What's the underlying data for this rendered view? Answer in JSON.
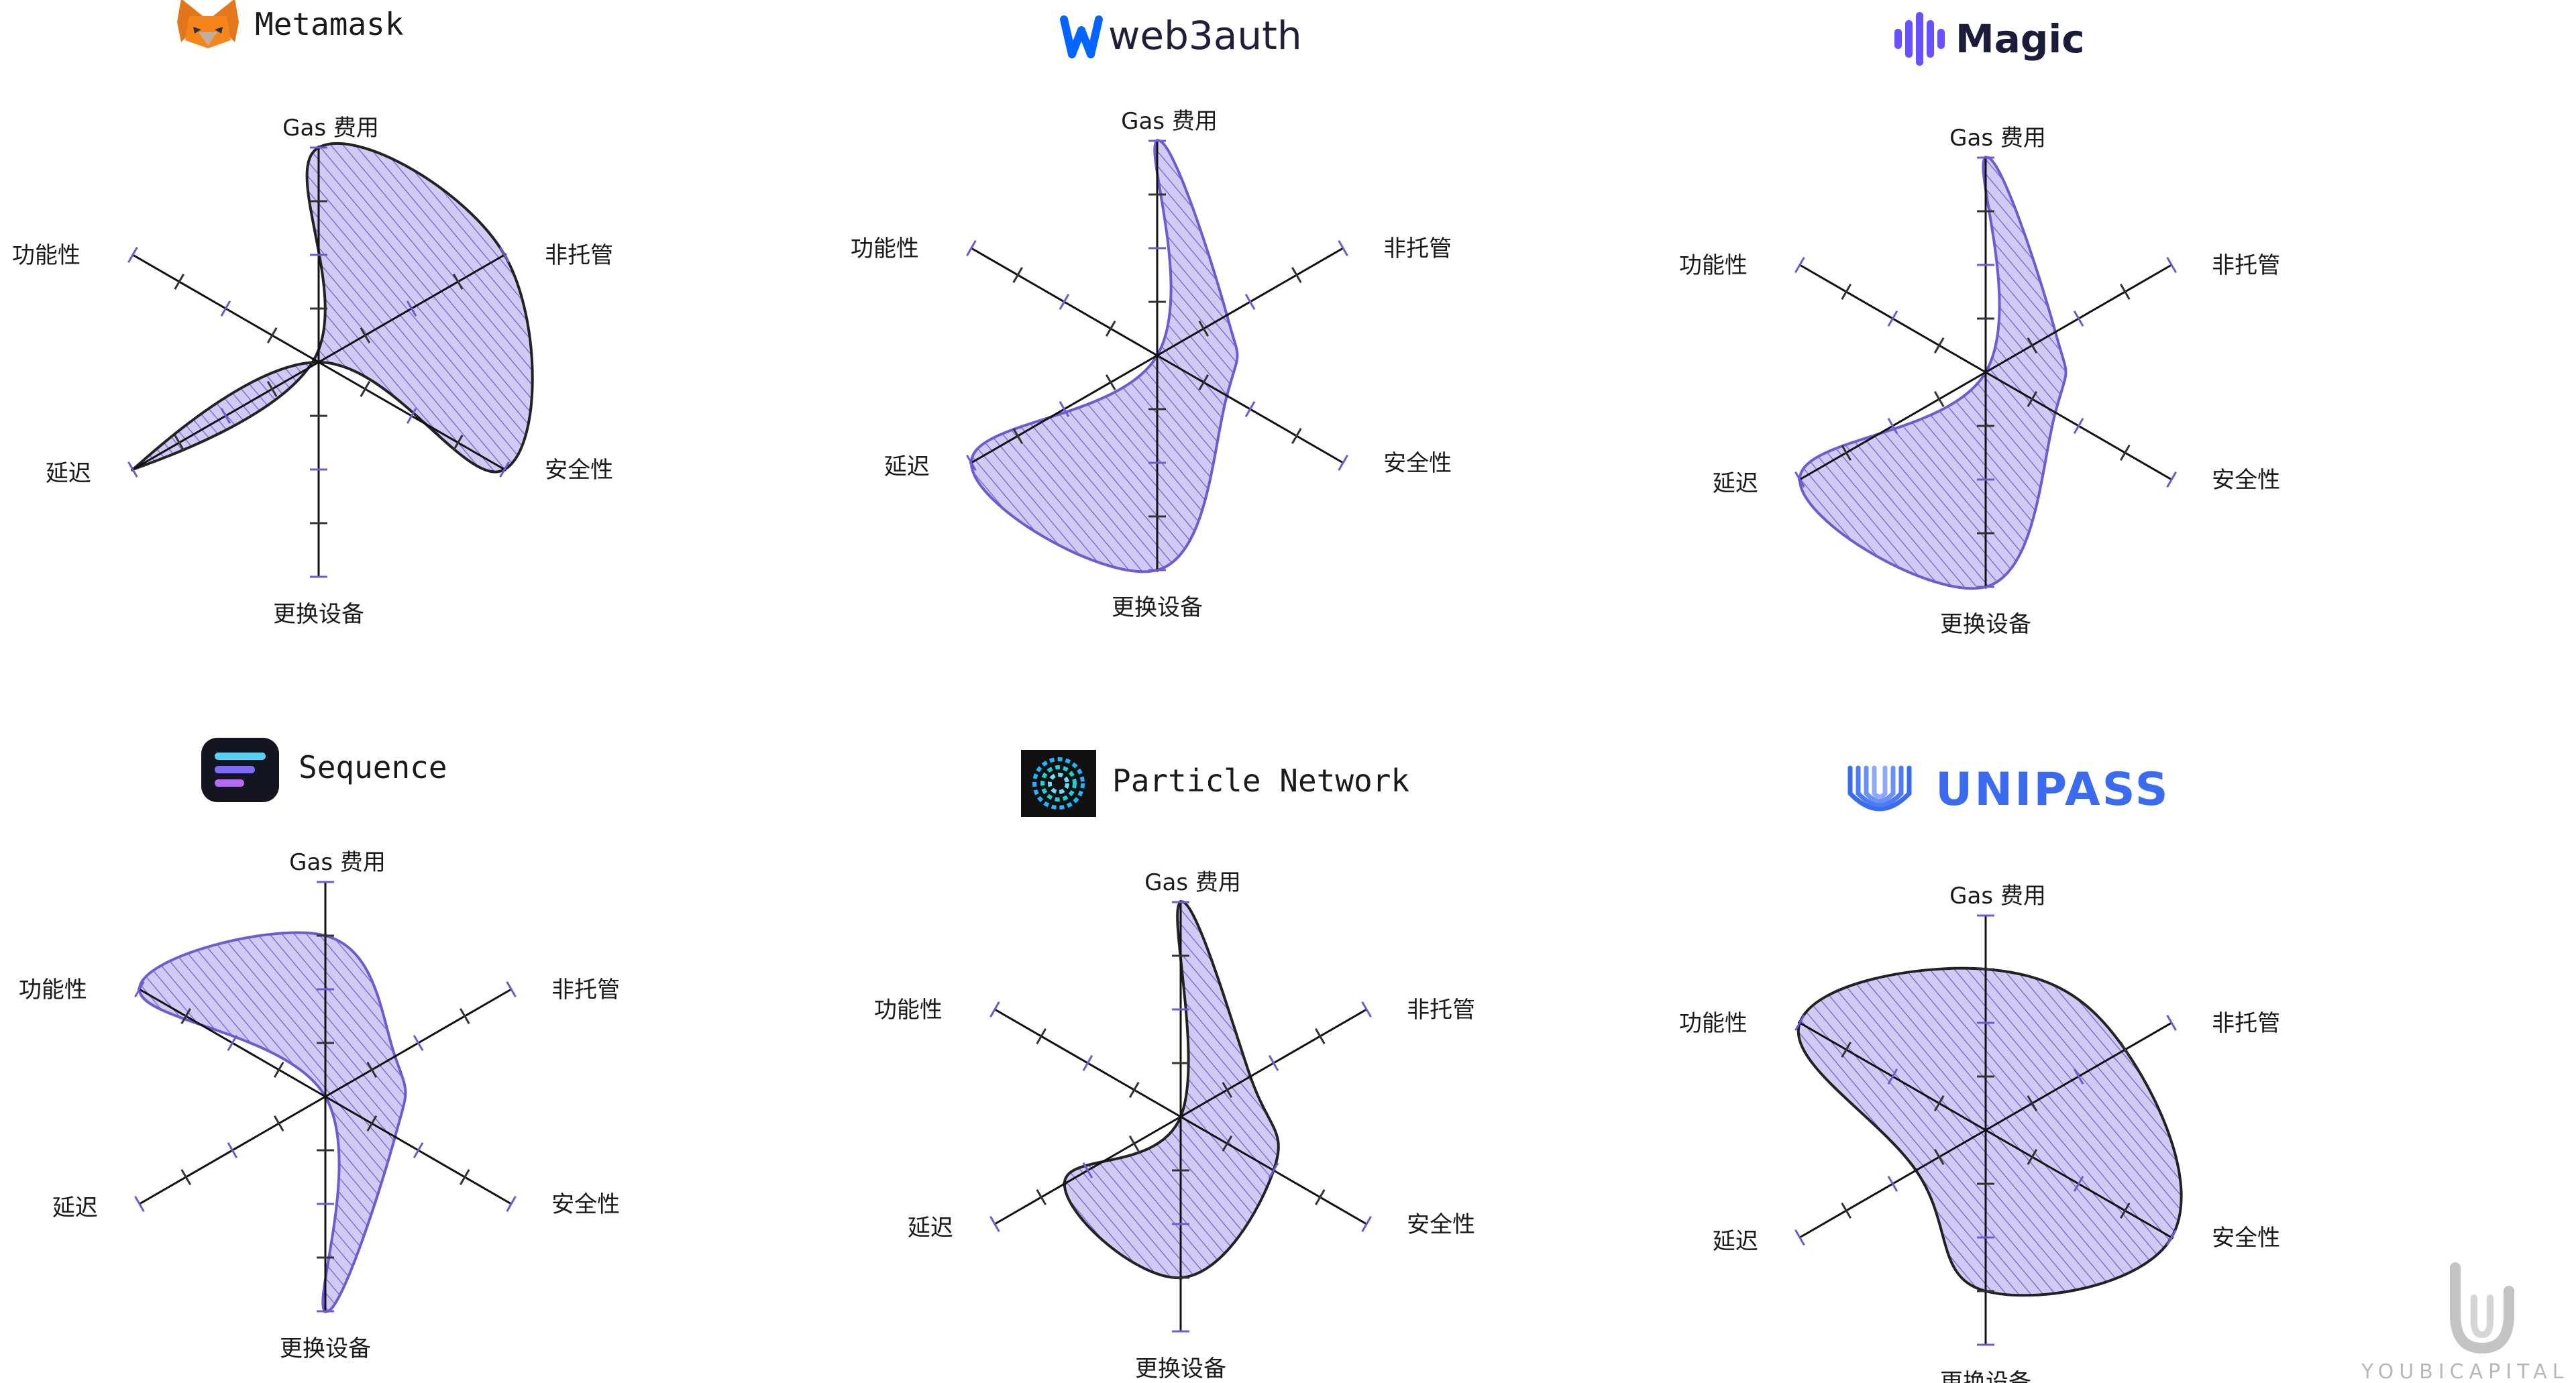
{
  "colors": {
    "fill": "#cfc8f3",
    "hatch": "#7a66d6",
    "outline_purple": "#6f5bd0",
    "outline_dark": "#222222",
    "axis": "#111111",
    "tick": "#333333",
    "tick_accent": "#6f5bd0",
    "unipass_blue": "#3b6cf0",
    "watermark": "#b8b8b8"
  },
  "watermark": {
    "text": "YOUBICAPITAL",
    "icon": "youbi-u-logo-icon"
  },
  "chart_data": [
    {
      "type": "radar",
      "brand": "Metamask",
      "logo_icon": "metamask-fox-icon",
      "axes": [
        "Gas 费用",
        "非托管",
        "安全性",
        "更换设备",
        "延迟",
        "功能性"
      ],
      "scale": [
        0,
        4
      ],
      "values": [
        4,
        4,
        4,
        0,
        4,
        0.1
      ],
      "outline": "dark"
    },
    {
      "type": "radar",
      "brand": "web3auth",
      "logo_icon": "web3auth-w-icon",
      "axes": [
        "Gas 费用",
        "非托管",
        "安全性",
        "更换设备",
        "延迟",
        "功能性"
      ],
      "scale": [
        0,
        4
      ],
      "values": [
        4,
        1.5,
        1.5,
        4,
        4,
        0
      ],
      "outline": "purple"
    },
    {
      "type": "radar",
      "brand": "Magic",
      "logo_icon": "magic-bars-icon",
      "axes": [
        "Gas 费用",
        "非托管",
        "安全性",
        "更换设备",
        "延迟",
        "功能性"
      ],
      "scale": [
        0,
        4
      ],
      "values": [
        4,
        1.5,
        1.5,
        4,
        4,
        0
      ],
      "outline": "purple"
    },
    {
      "type": "radar",
      "brand": "Sequence",
      "logo_icon": "sequence-lines-icon",
      "axes": [
        "Gas 费用",
        "非托管",
        "安全性",
        "更换设备",
        "延迟",
        "功能性"
      ],
      "scale": [
        0,
        4
      ],
      "values": [
        3,
        1.5,
        1.5,
        4,
        0,
        4
      ],
      "outline": "purple"
    },
    {
      "type": "radar",
      "brand": "Particle Network",
      "logo_icon": "particle-rings-icon",
      "axes": [
        "Gas 费用",
        "非托管",
        "安全性",
        "更换设备",
        "延迟",
        "功能性"
      ],
      "scale": [
        0,
        4
      ],
      "values": [
        4,
        1.5,
        2,
        3,
        2.5,
        0
      ],
      "outline": "dark"
    },
    {
      "type": "radar",
      "brand": "UNIPASS",
      "logo_icon": "unipass-fingerprint-icon",
      "axes": [
        "Gas 费用",
        "非托管",
        "安全性",
        "更换设备",
        "延迟",
        "功能性"
      ],
      "scale": [
        0,
        4
      ],
      "values": [
        3,
        3,
        4,
        3,
        1.5,
        4
      ],
      "outline": "dark"
    }
  ]
}
